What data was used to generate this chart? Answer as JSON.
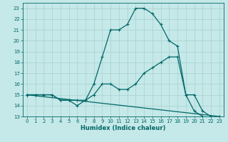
{
  "xlabel": "Humidex (Indice chaleur)",
  "bg_color": "#c5e8e8",
  "grid_color": "#a8d0d0",
  "line_color": "#006868",
  "xlim": [
    -0.5,
    23.5
  ],
  "ylim": [
    13,
    23.5
  ],
  "xticks": [
    0,
    1,
    2,
    3,
    4,
    5,
    6,
    7,
    8,
    9,
    10,
    11,
    12,
    13,
    14,
    15,
    16,
    17,
    18,
    19,
    20,
    21,
    22,
    23
  ],
  "yticks": [
    13,
    14,
    15,
    16,
    17,
    18,
    19,
    20,
    21,
    22,
    23
  ],
  "line1_x": [
    0,
    1,
    2,
    3,
    4,
    5,
    6,
    7,
    8,
    9,
    10,
    11,
    12,
    13,
    14,
    15,
    16,
    17,
    18,
    19,
    20,
    21
  ],
  "line1_y": [
    15,
    15,
    15,
    15,
    14.5,
    14.5,
    14,
    14.5,
    16,
    18.5,
    21,
    21,
    21.5,
    23,
    23,
    22.5,
    21.5,
    20,
    19.5,
    15,
    13.5,
    13
  ],
  "line2_x": [
    0,
    1,
    2,
    3,
    4,
    5,
    6,
    7,
    8,
    9,
    10,
    11,
    12,
    13,
    14,
    15,
    16,
    17,
    18,
    19,
    20,
    21,
    22
  ],
  "line2_y": [
    15,
    15,
    15,
    15,
    14.5,
    14.5,
    14.5,
    14.5,
    15,
    16,
    16,
    15.5,
    15.5,
    16,
    17,
    17.5,
    18,
    18.5,
    18.5,
    15,
    15,
    13.5,
    13
  ],
  "line3_x": [
    0,
    23
  ],
  "line3_y": [
    15,
    13
  ]
}
